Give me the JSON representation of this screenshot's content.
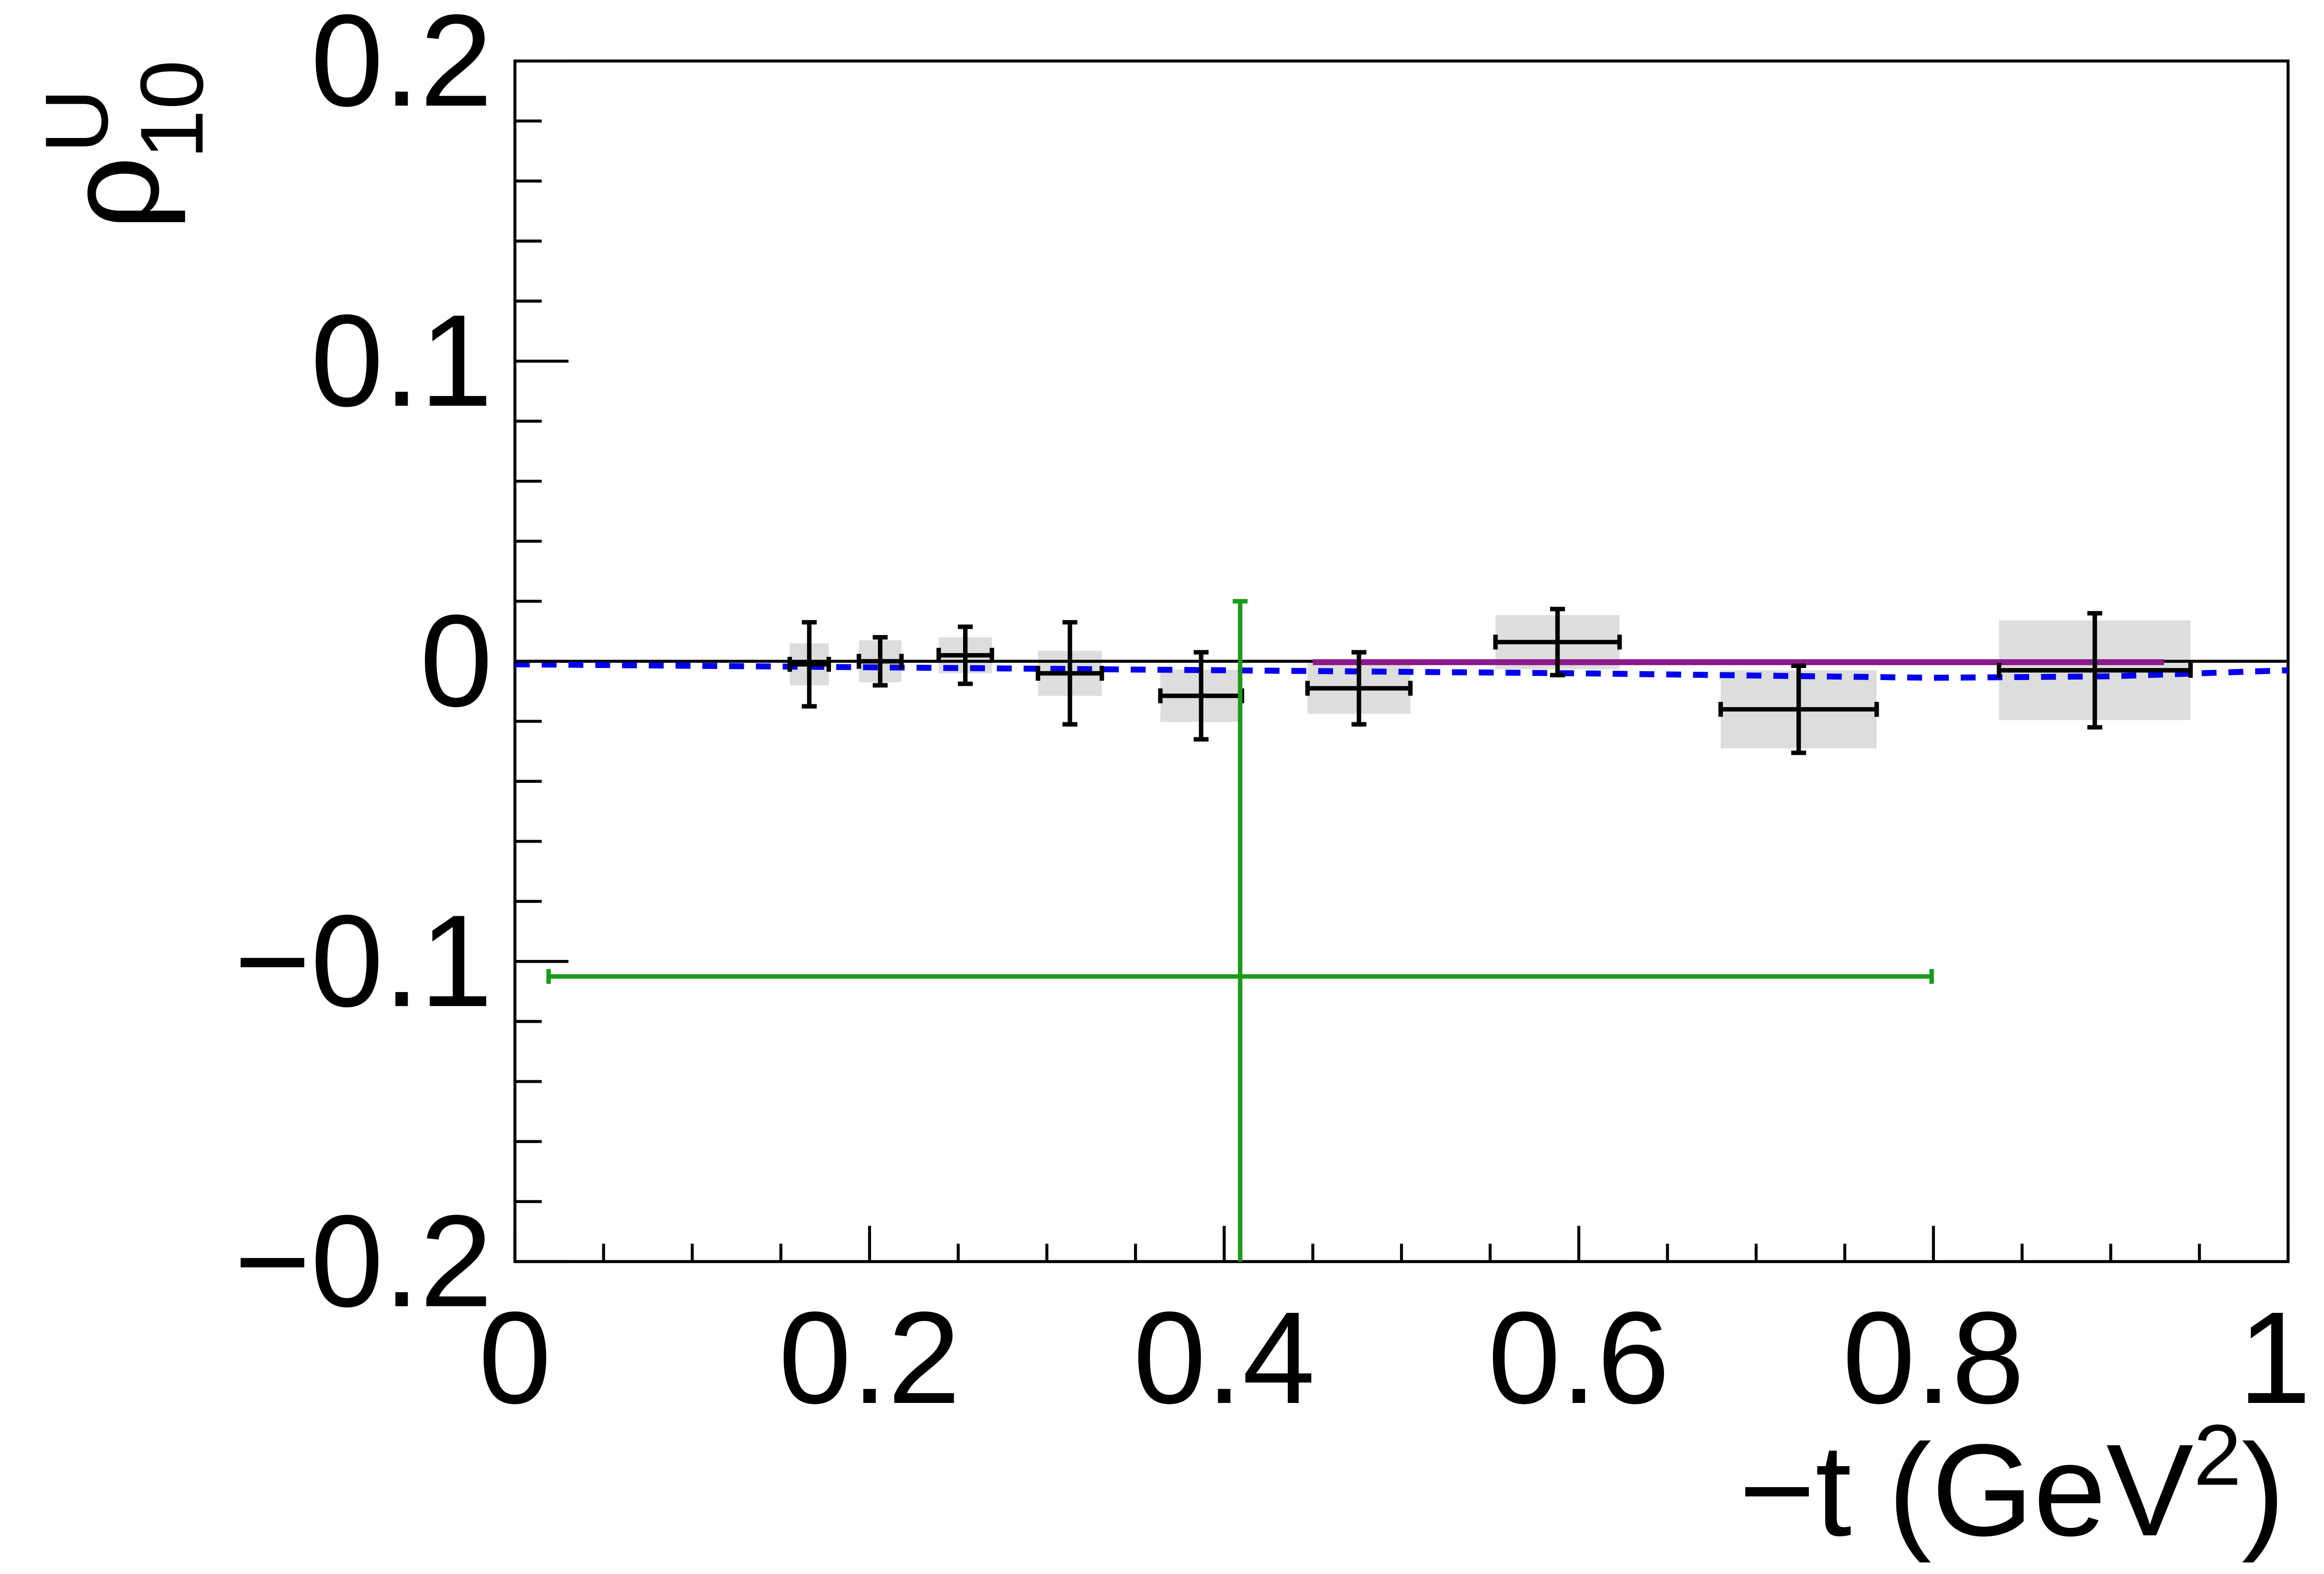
{
  "chart_data": {
    "type": "errorbar",
    "xlabel": {
      "main": "−t (GeV",
      "sup": "2",
      "close": ")"
    },
    "ylabel": {
      "main": "ρ",
      "sup": "U",
      "sub": "10"
    },
    "xlim": [
      0,
      1
    ],
    "ylim": [
      -0.2,
      0.2
    ],
    "xticks": [
      0,
      0.2,
      0.4,
      0.6,
      0.8,
      1
    ],
    "yticks": [
      {
        "value": -0.2,
        "label": "−0.2"
      },
      {
        "value": -0.1,
        "label": "−0.1"
      },
      0,
      0.1,
      0.2
    ],
    "series": [
      {
        "color": "#000000",
        "syst_color": "#dddddd",
        "x": [
          0.166,
          0.206,
          0.254,
          0.313,
          0.387,
          0.476,
          0.588,
          0.724,
          0.891
        ],
        "values": [
          -0.001,
          0.0,
          0.002,
          -0.004,
          -0.0115,
          -0.009,
          0.0064,
          -0.016,
          -0.003
        ],
        "xerr": [
          0.011,
          0.012,
          0.015,
          0.018,
          0.023,
          0.029,
          0.035,
          0.044,
          0.054
        ],
        "yerr": [
          0.014,
          0.008,
          0.0095,
          0.017,
          0.0145,
          0.012,
          0.011,
          0.0145,
          0.019
        ],
        "syst": [
          0.007,
          0.007,
          0.006,
          0.0075,
          0.0087,
          0.0085,
          0.009,
          0.013,
          0.0166
        ]
      },
      {
        "color": "#1a9a1a",
        "x": [
          0.409
        ],
        "values": [
          -0.105
        ],
        "xerr": [
          0.39
        ],
        "yerr": [
          0.125
        ]
      }
    ],
    "curves": [
      {
        "color": "#0000ee",
        "dashed": true,
        "x": [
          0,
          0.2,
          0.4,
          0.6,
          0.8,
          0.9,
          1
        ],
        "values": [
          -0.001,
          -0.002,
          -0.003,
          -0.004,
          -0.0055,
          -0.005,
          -0.003
        ]
      },
      {
        "color": "#8b1a8b",
        "dashed": false,
        "x": [
          0.45,
          0.93
        ],
        "values": [
          -0.0003,
          -0.0003
        ]
      }
    ],
    "zero_line": true
  }
}
